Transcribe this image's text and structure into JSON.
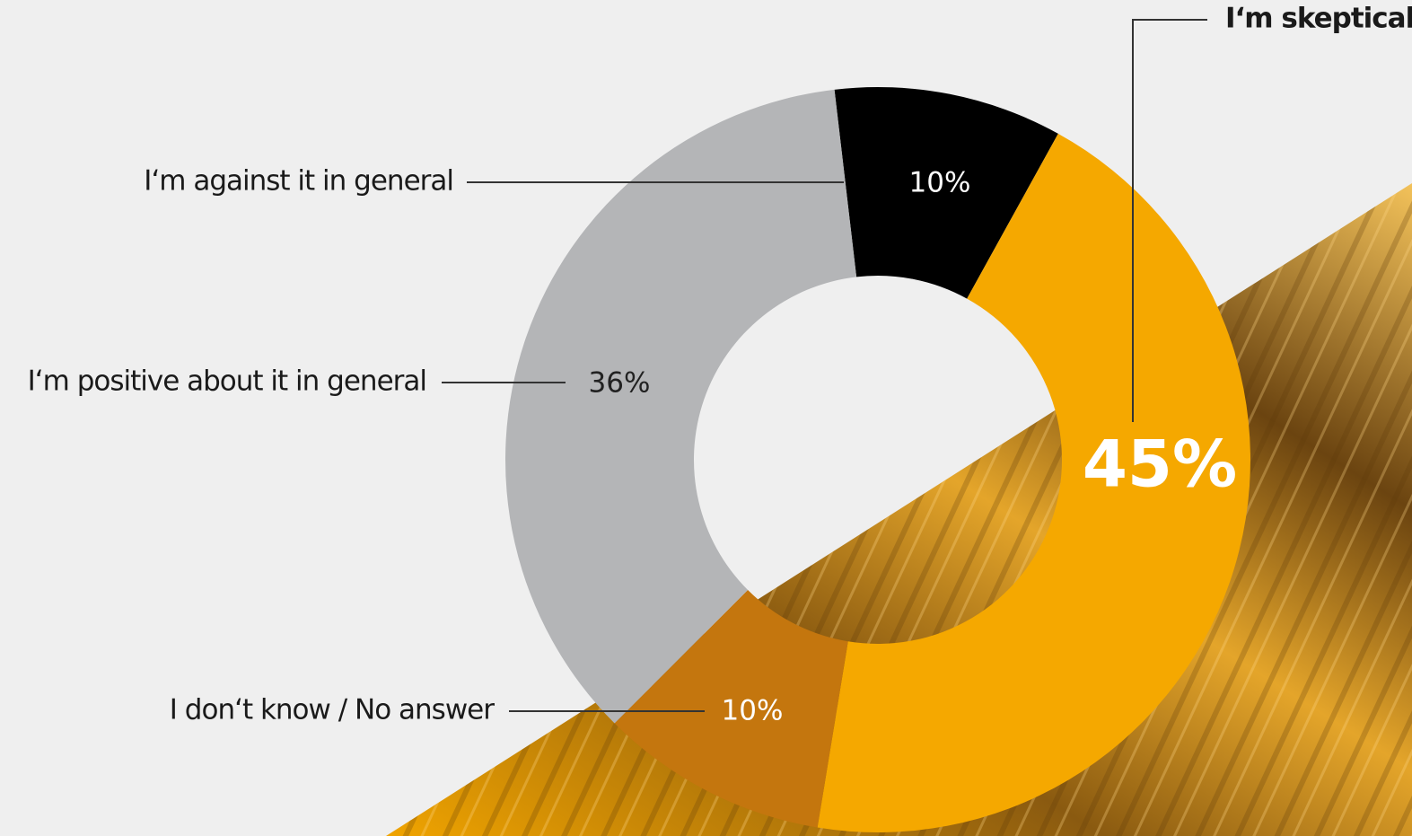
{
  "chart_data": {
    "type": "donut",
    "categories": [
      "I‘m against it in general",
      "I‘m skeptical",
      "I don‘t know / No answer",
      "I‘m positive about it in general"
    ],
    "values": [
      10,
      45,
      10,
      36
    ],
    "value_labels": [
      "10%",
      "45%",
      "10%",
      "36%"
    ],
    "colors": [
      "#000000",
      "#f5a800",
      "#c4760e",
      "#b4b5b7"
    ]
  }
}
